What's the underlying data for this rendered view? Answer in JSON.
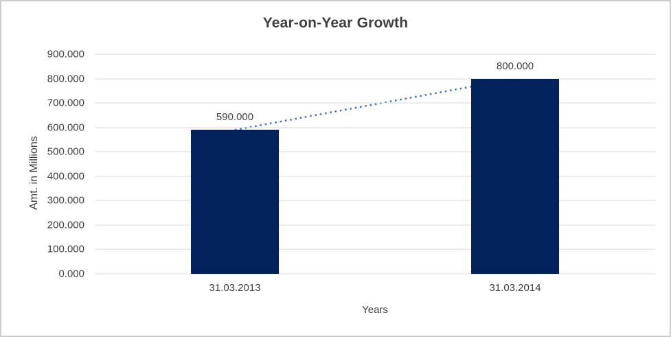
{
  "chart_data": {
    "type": "bar",
    "title": "Year-on-Year Growth",
    "xlabel": "Years",
    "ylabel": "Amt. in Millions",
    "categories": [
      "31.03.2013",
      "31.03.2014"
    ],
    "values": [
      590,
      800
    ],
    "value_labels": [
      "590.000",
      "800.000"
    ],
    "ylim": [
      0,
      900
    ],
    "ytick_step": 100,
    "ytick_labels": [
      "0.000",
      "100.000",
      "200.000",
      "300.000",
      "400.000",
      "500.000",
      "600.000",
      "700.000",
      "800.000",
      "900.000"
    ],
    "grid": true,
    "legend": "none",
    "trendline": {
      "style": "dotted",
      "from_value": 590,
      "to_value": 800
    },
    "colors": {
      "bar": "#03215C",
      "trendline": "#4377BD",
      "gridline": "#D9D9D9",
      "text": "#404040",
      "title": "#3F3F3F",
      "border": "#CCCCCC"
    }
  }
}
